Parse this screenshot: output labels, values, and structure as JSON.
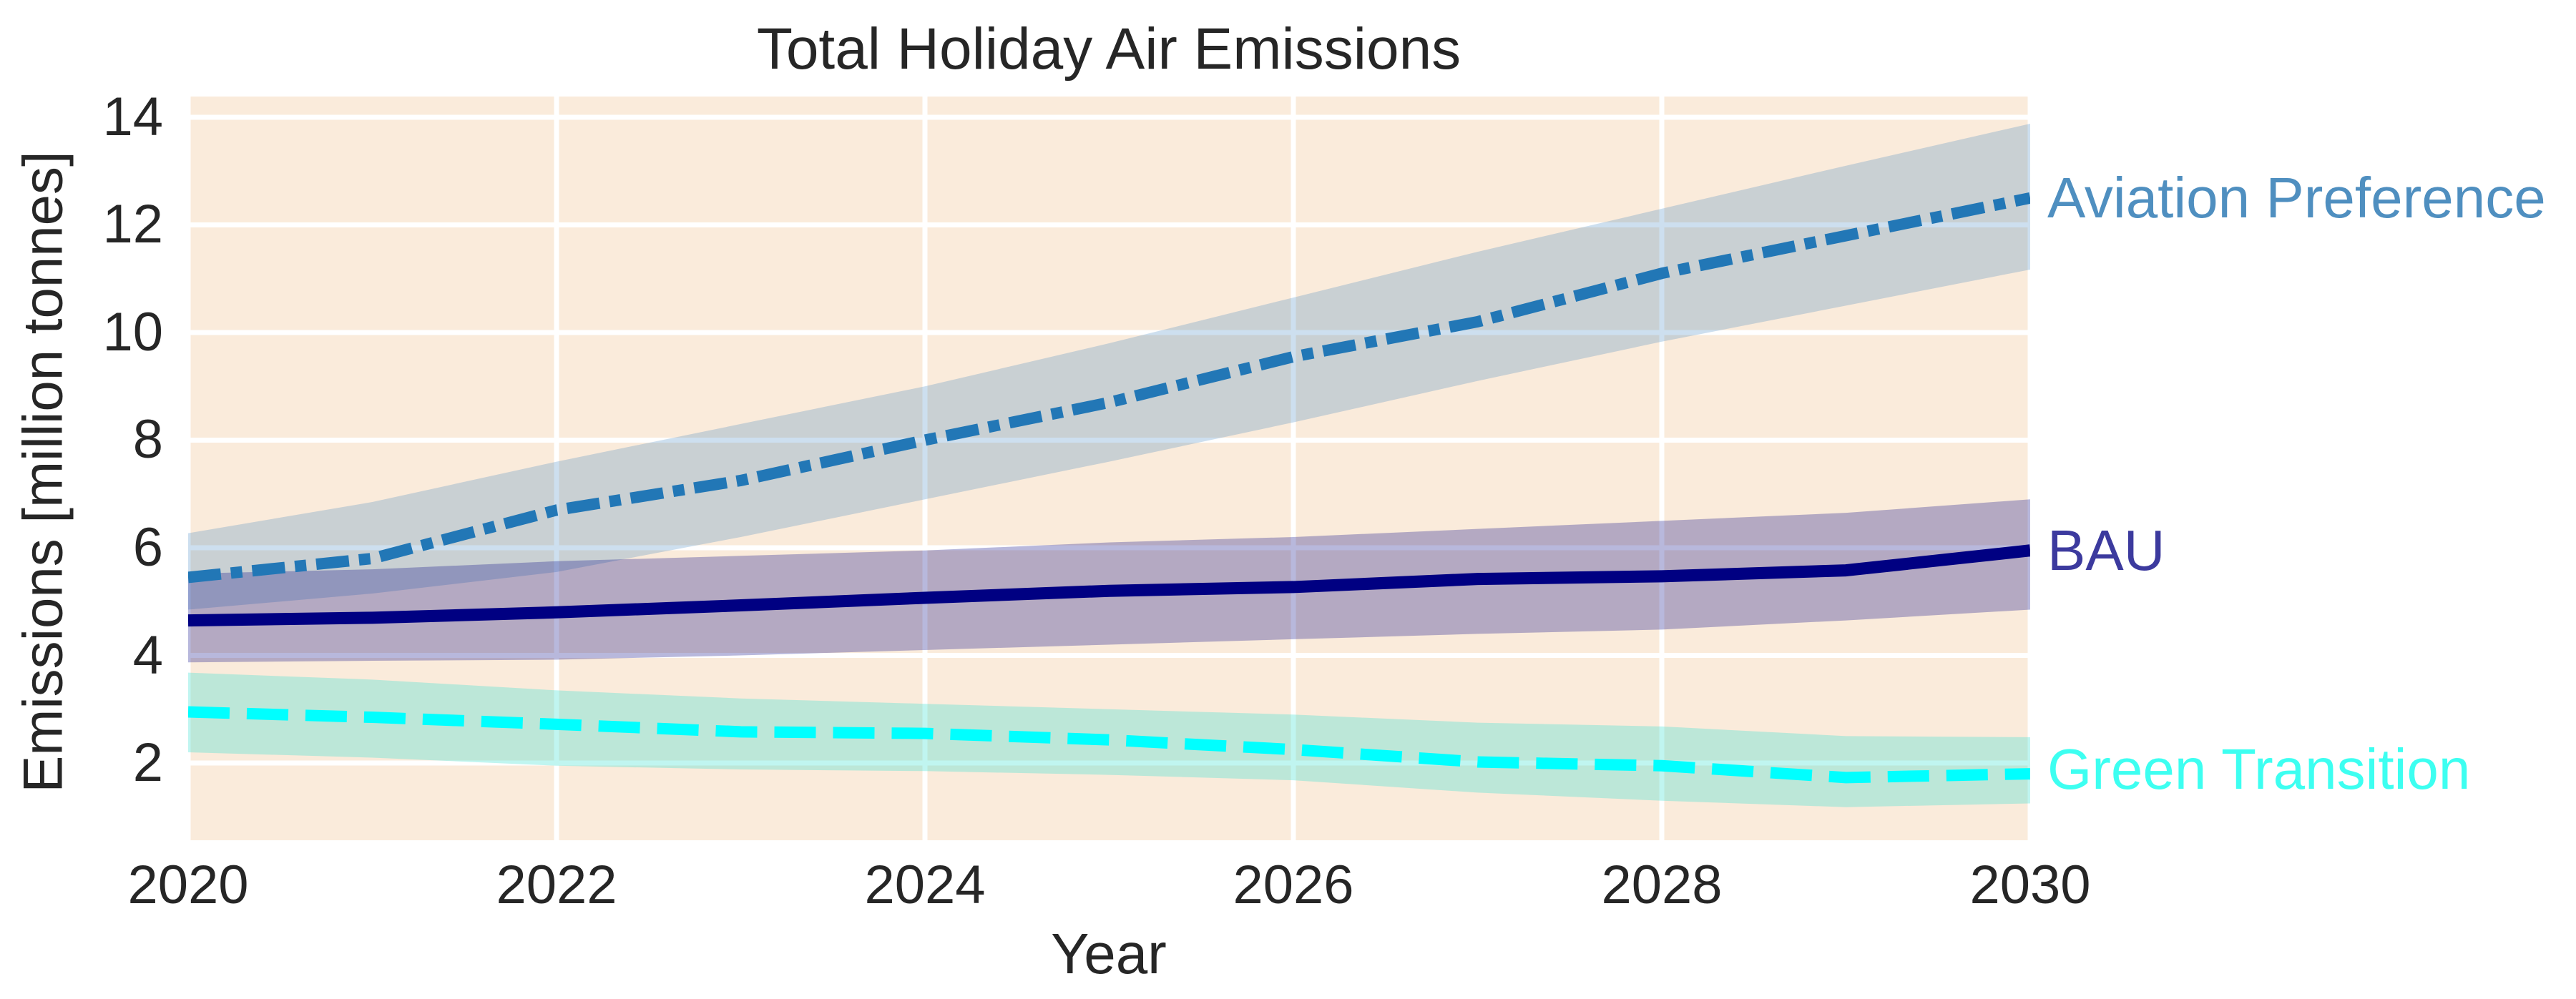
{
  "page": {
    "background": "#ffffff"
  },
  "chart_data": {
    "type": "line",
    "title": "Total Holiday Air Emissions",
    "xlabel": "Year",
    "ylabel": "Emissions [million tonnes]",
    "x": [
      2020,
      2021,
      2022,
      2023,
      2024,
      2025,
      2026,
      2027,
      2028,
      2029,
      2030
    ],
    "xlim": [
      2020,
      2030
    ],
    "ylim": [
      0.565,
      14.385
    ],
    "xticks": [
      2020,
      2022,
      2024,
      2026,
      2028,
      2030
    ],
    "yticks": [
      2,
      4,
      6,
      8,
      10,
      12,
      14
    ],
    "grid": true,
    "gridline_color": "#ffffff",
    "plot_background": "#faebdb",
    "text_color": "#262626",
    "legend_position": "labels-at-right-line-ends",
    "series": [
      {
        "name": "Aviation Preference",
        "style": "dashdot",
        "line_color": "#2277b6",
        "label_color": "#4f8fc0",
        "band_color": "rgba(45,120,190,0.24)",
        "values": [
          5.45,
          5.8,
          6.7,
          7.25,
          8.0,
          8.7,
          9.55,
          10.2,
          11.1,
          11.8,
          12.5
        ],
        "band_lower": [
          4.85,
          5.15,
          5.55,
          6.2,
          6.9,
          7.6,
          8.33,
          9.1,
          9.83,
          10.5,
          11.17
        ],
        "band_upper": [
          6.27,
          6.85,
          7.6,
          8.3,
          9.0,
          9.8,
          10.65,
          11.5,
          12.3,
          13.1,
          13.88
        ],
        "label_y": 12.5
      },
      {
        "name": "BAU",
        "style": "solid",
        "line_color": "#000082",
        "label_color": "#3c3a9e",
        "band_color": "rgba(0,0,128,0.28)",
        "values": [
          4.65,
          4.7,
          4.8,
          4.93,
          5.07,
          5.2,
          5.27,
          5.42,
          5.47,
          5.58,
          5.95
        ],
        "band_lower": [
          3.87,
          3.9,
          3.92,
          4.0,
          4.1,
          4.2,
          4.3,
          4.4,
          4.48,
          4.65,
          4.85
        ],
        "band_upper": [
          5.52,
          5.6,
          5.75,
          5.85,
          5.95,
          6.1,
          6.2,
          6.35,
          6.5,
          6.65,
          6.9
        ],
        "label_y": 5.95
      },
      {
        "name": "Green Transition",
        "style": "dashed",
        "line_color": "#00ffff",
        "label_color": "#3dfff1",
        "band_color": "rgba(64,224,208,0.33)",
        "values": [
          2.95,
          2.85,
          2.72,
          2.58,
          2.55,
          2.43,
          2.25,
          2.02,
          1.95,
          1.73,
          1.8
        ],
        "band_lower": [
          2.2,
          2.1,
          1.95,
          1.88,
          1.85,
          1.78,
          1.68,
          1.45,
          1.3,
          1.18,
          1.25
        ],
        "band_upper": [
          3.68,
          3.55,
          3.35,
          3.2,
          3.1,
          3.0,
          2.9,
          2.75,
          2.68,
          2.5,
          2.48
        ],
        "label_y": 1.88
      }
    ]
  }
}
